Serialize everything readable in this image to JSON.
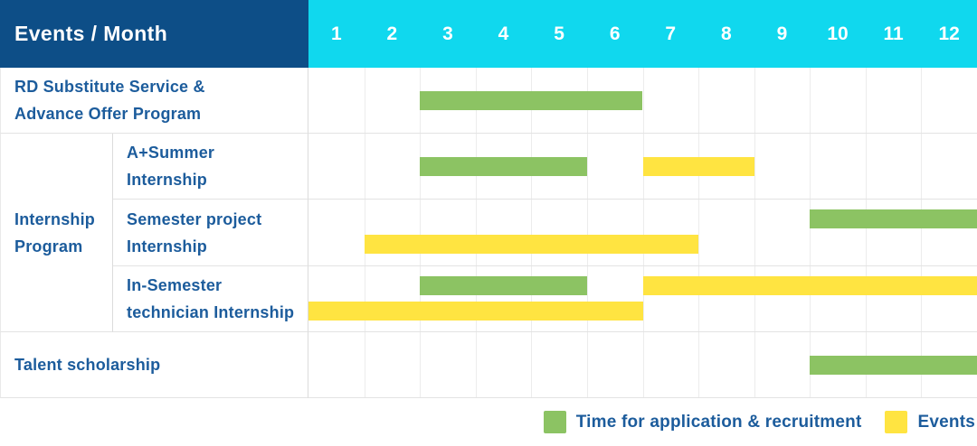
{
  "header": {
    "title": "Events / Month",
    "months": [
      "1",
      "2",
      "3",
      "4",
      "5",
      "6",
      "7",
      "8",
      "9",
      "10",
      "11",
      "12"
    ]
  },
  "colors": {
    "header_navy": "#0D4E87",
    "header_cyan": "#10D8EE",
    "green": "#8CC363",
    "yellow": "#FFE441",
    "label_text": "#1C5C9C"
  },
  "group_label_lines": {
    "Internship Program": [
      "Internship",
      "Program"
    ]
  },
  "rows": [
    {
      "group": "",
      "label": "RD Substitute Service & Advance Offer Program",
      "label_lines": [
        "RD Substitute Service &",
        "Advance Offer Program"
      ],
      "bars": [
        {
          "color_key": "green",
          "track": "center",
          "start_month": 3,
          "end_month": 6
        }
      ]
    },
    {
      "group": "Internship Program",
      "label": "A+Summer Internship",
      "label_lines": [
        "A+Summer",
        "Internship"
      ],
      "bars": [
        {
          "color_key": "green",
          "track": "center",
          "start_month": 3,
          "end_month": 5
        },
        {
          "color_key": "yellow",
          "track": "center",
          "start_month": 7,
          "end_month": 8
        }
      ]
    },
    {
      "group": "Internship Program",
      "label": "Semester project Internship",
      "label_lines": [
        "Semester project",
        "Internship"
      ],
      "bars": [
        {
          "color_key": "green",
          "track": "upper",
          "start_month": 10,
          "end_month": 12
        },
        {
          "color_key": "yellow",
          "track": "lower",
          "start_month": 2,
          "end_month": 7
        }
      ]
    },
    {
      "group": "Internship Program",
      "label": "In-Semester technician Internship",
      "label_lines": [
        "In-Semester",
        "technician Internship"
      ],
      "bars": [
        {
          "color_key": "green",
          "track": "upper",
          "start_month": 3,
          "end_month": 5
        },
        {
          "color_key": "yellow",
          "track": "upper",
          "start_month": 7,
          "end_month": 12
        },
        {
          "color_key": "yellow",
          "track": "lower",
          "start_month": 1,
          "end_month": 6
        }
      ]
    },
    {
      "group": "",
      "label": "Talent scholarship",
      "label_lines": [
        "Talent scholarship"
      ],
      "bars": [
        {
          "color_key": "green",
          "track": "center",
          "start_month": 10,
          "end_month": 12
        }
      ]
    }
  ],
  "legend": {
    "items": [
      {
        "color_key": "green",
        "label": "Time for application & recruitment"
      },
      {
        "color_key": "yellow",
        "label": "Events"
      }
    ]
  },
  "chart_data": {
    "type": "bar",
    "subtype": "gantt",
    "title": "Events / Month",
    "x_categories": [
      1,
      2,
      3,
      4,
      5,
      6,
      7,
      8,
      9,
      10,
      11,
      12
    ],
    "x_range": [
      1,
      12
    ],
    "grid": true,
    "legend_position": "bottom-right",
    "series_legend": {
      "green": "Time for application & recruitment",
      "yellow": "Events"
    },
    "tasks": [
      {
        "row": "RD Substitute Service & Advance Offer Program",
        "group": null,
        "segments": [
          {
            "kind": "Time for application & recruitment",
            "months": [
              3,
              6
            ]
          }
        ]
      },
      {
        "row": "A+Summer Internship",
        "group": "Internship Program",
        "segments": [
          {
            "kind": "Time for application & recruitment",
            "months": [
              3,
              5
            ]
          },
          {
            "kind": "Events",
            "months": [
              7,
              8
            ]
          }
        ]
      },
      {
        "row": "Semester project Internship",
        "group": "Internship Program",
        "segments": [
          {
            "kind": "Time for application & recruitment",
            "months": [
              10,
              12
            ]
          },
          {
            "kind": "Events",
            "months": [
              2,
              7
            ]
          }
        ]
      },
      {
        "row": "In-Semester technician Internship",
        "group": "Internship Program",
        "segments": [
          {
            "kind": "Time for application & recruitment",
            "months": [
              3,
              5
            ]
          },
          {
            "kind": "Events",
            "months": [
              7,
              12
            ]
          },
          {
            "kind": "Events",
            "months": [
              1,
              6
            ]
          }
        ]
      },
      {
        "row": "Talent scholarship",
        "group": null,
        "segments": [
          {
            "kind": "Time for application & recruitment",
            "months": [
              10,
              12
            ]
          }
        ]
      }
    ]
  }
}
